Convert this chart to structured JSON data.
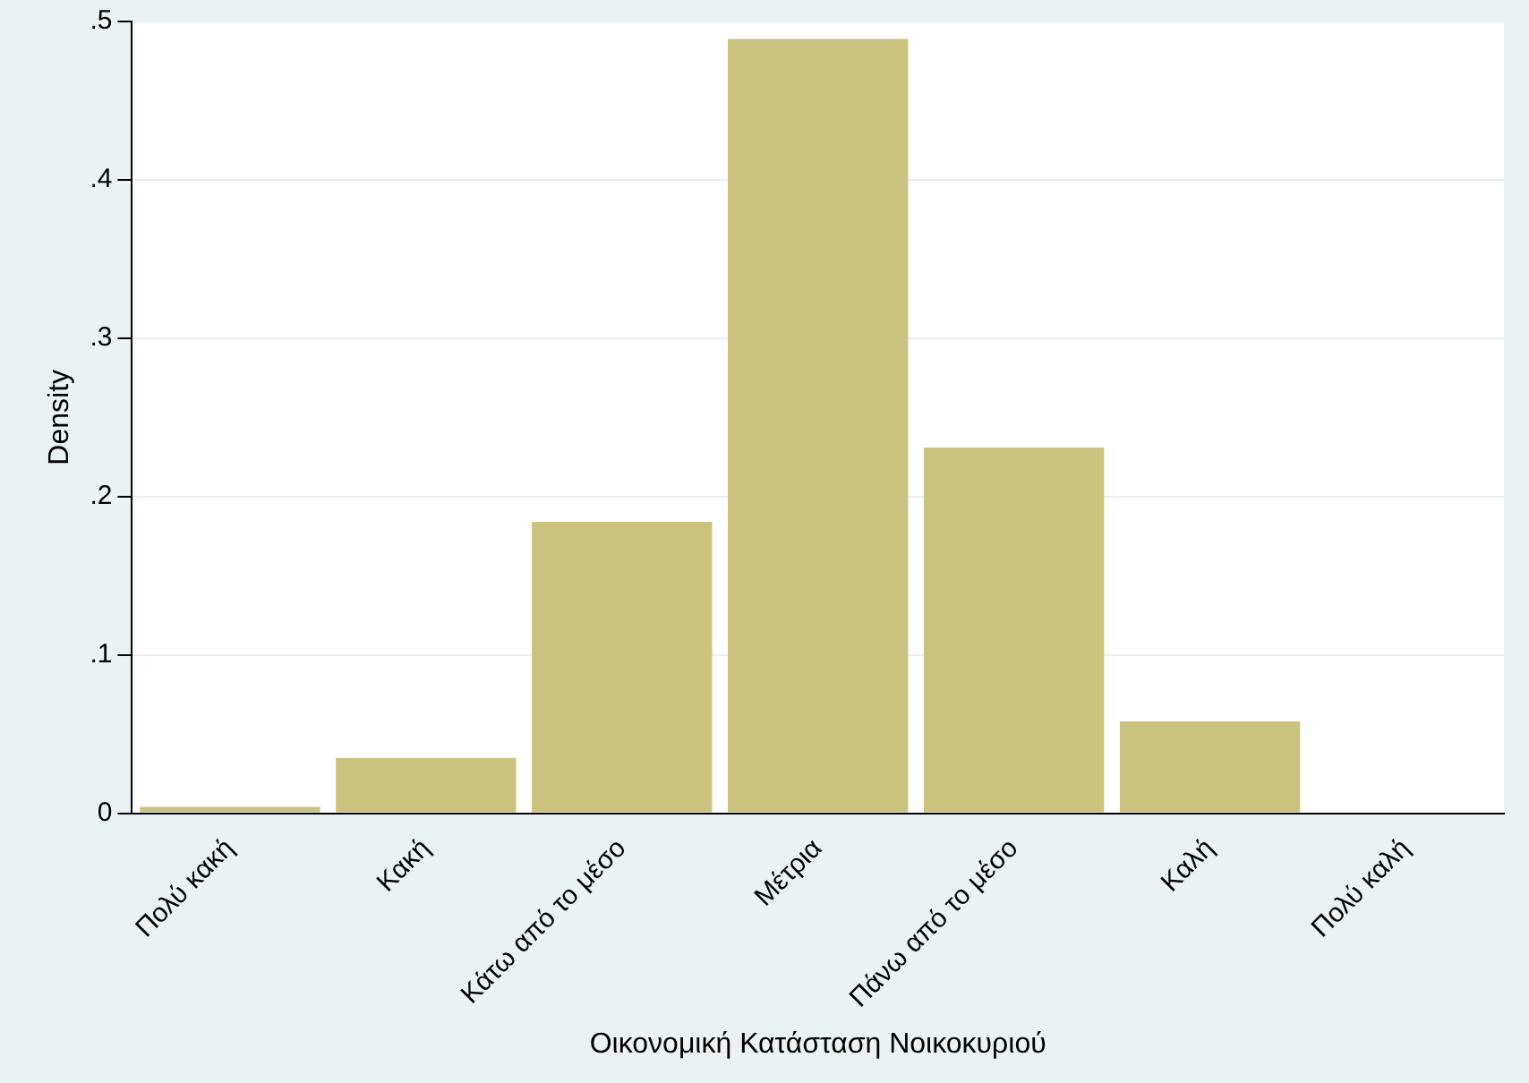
{
  "chart_data": {
    "type": "bar",
    "xlabel": "Οικονομική Κατάσταση Νοικοκυριού",
    "ylabel": "Density",
    "categories": [
      "Πολύ κακή",
      "Κακή",
      "Κάτω από το μέσο",
      "Μέτρια",
      "Πάνω από το μέσο",
      "Καλή",
      "Πολύ καλή"
    ],
    "values": [
      0.004,
      0.035,
      0.184,
      0.489,
      0.231,
      0.058,
      0
    ],
    "color": "#cbc280",
    "ylim": [
      0,
      0.5
    ],
    "yticks": [
      0,
      {
        "value": 0.1,
        "label": ".1"
      },
      {
        "value": 0.2,
        "label": ".2"
      },
      {
        "value": 0.3,
        "label": ".3"
      },
      {
        "value": 0.4,
        "label": ".4"
      },
      {
        "value": 0.5,
        "label": ".5"
      }
    ],
    "grid": "y",
    "legend": false
  }
}
